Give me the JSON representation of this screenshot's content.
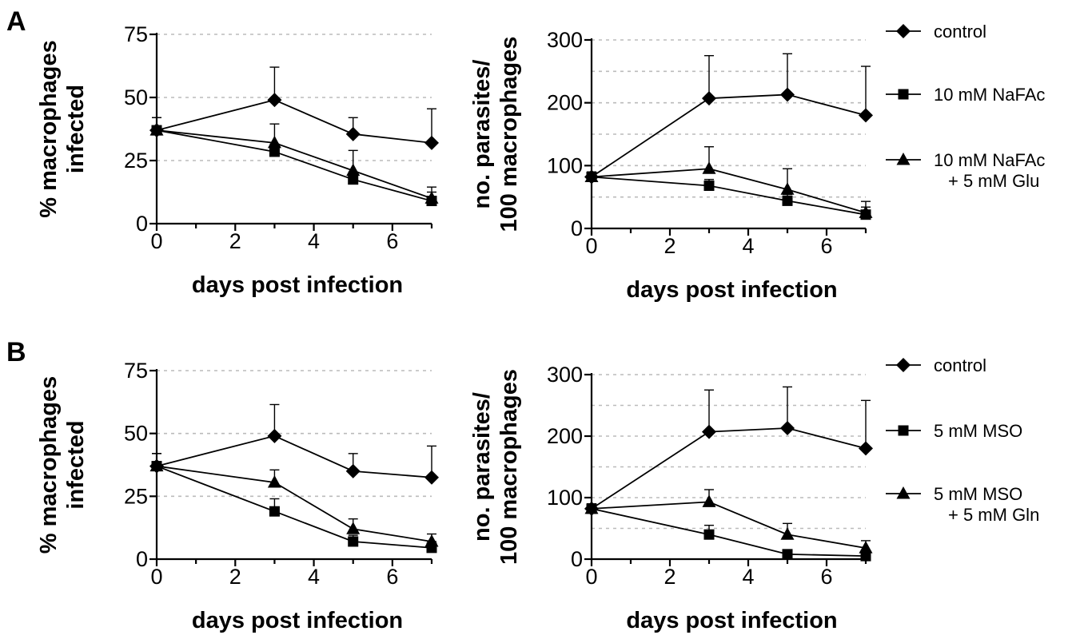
{
  "panels": [
    {
      "letter": "A"
    },
    {
      "letter": "B"
    }
  ],
  "legends": [
    {
      "items": [
        {
          "label": "control",
          "marker": "diamond"
        },
        {
          "label": "10 mM NaFAc",
          "marker": "square"
        },
        {
          "label": "10 mM NaFAc",
          "label2": "+ 5 mM Glu",
          "marker": "triangle"
        }
      ]
    },
    {
      "items": [
        {
          "label": "control",
          "marker": "diamond"
        },
        {
          "label": "5 mM MSO",
          "marker": "square"
        },
        {
          "label": "5 mM MSO",
          "label2": "+ 5 mM Gln",
          "marker": "triangle"
        }
      ]
    }
  ],
  "chart_data": [
    {
      "type": "line",
      "panel": "A",
      "ylabel": [
        "% macrophages",
        "infected"
      ],
      "xlabel": "days post infection",
      "xlim": [
        0,
        7
      ],
      "ylim": [
        0,
        75
      ],
      "xticks": [
        0,
        2,
        4,
        6
      ],
      "yticks": [
        0,
        25,
        50,
        75
      ],
      "grid": [
        25,
        50,
        75
      ],
      "x": [
        0,
        3,
        5,
        7
      ],
      "series": [
        {
          "marker": "diamond",
          "values": [
            37,
            49,
            35.5,
            32
          ],
          "err": [
            5,
            13,
            6.5,
            13.5
          ]
        },
        {
          "marker": "square",
          "values": [
            37,
            28.5,
            17.5,
            9
          ],
          "err": [
            5,
            3,
            3,
            3.5
          ]
        },
        {
          "marker": "triangle",
          "values": [
            37,
            32,
            21,
            10
          ],
          "err": [
            5,
            7.5,
            8,
            4.5
          ]
        }
      ]
    },
    {
      "type": "line",
      "panel": "A",
      "ylabel": [
        "no. parasites/",
        "100 macrophages"
      ],
      "xlabel": "days post infection",
      "xlim": [
        0,
        7
      ],
      "ylim": [
        0,
        300
      ],
      "xticks": [
        0,
        2,
        4,
        6
      ],
      "yticks": [
        0,
        100,
        200,
        300
      ],
      "grid": [
        50,
        100,
        150,
        200,
        250,
        300
      ],
      "x": [
        0,
        3,
        5,
        7
      ],
      "series": [
        {
          "marker": "diamond",
          "values": [
            82,
            207,
            213,
            180
          ],
          "err": [
            8,
            68,
            65,
            78
          ]
        },
        {
          "marker": "square",
          "values": [
            82,
            68,
            44,
            22
          ],
          "err": [
            8,
            10,
            10,
            12
          ]
        },
        {
          "marker": "triangle",
          "values": [
            82,
            95,
            62,
            25
          ],
          "err": [
            8,
            35,
            33,
            18
          ]
        }
      ]
    },
    {
      "type": "line",
      "panel": "B",
      "ylabel": [
        "% macrophages",
        "infected"
      ],
      "xlabel": "days post infection",
      "xlim": [
        0,
        7
      ],
      "ylim": [
        0,
        75
      ],
      "xticks": [
        0,
        2,
        4,
        6
      ],
      "yticks": [
        0,
        25,
        50,
        75
      ],
      "grid": [
        25,
        50,
        75
      ],
      "x": [
        0,
        3,
        5,
        7
      ],
      "series": [
        {
          "marker": "diamond",
          "values": [
            37,
            49,
            35,
            32.5
          ],
          "err": [
            5,
            12.5,
            7,
            12.5
          ]
        },
        {
          "marker": "square",
          "values": [
            37,
            19,
            7,
            4.5
          ],
          "err": [
            5,
            5,
            2.5,
            2.5
          ]
        },
        {
          "marker": "triangle",
          "values": [
            37,
            30.5,
            12,
            7
          ],
          "err": [
            5,
            5,
            4,
            3
          ]
        }
      ]
    },
    {
      "type": "line",
      "panel": "B",
      "ylabel": [
        "no. parasites/",
        "100 macrophages"
      ],
      "xlabel": "days post infection",
      "xlim": [
        0,
        7
      ],
      "ylim": [
        0,
        300
      ],
      "xticks": [
        0,
        2,
        4,
        6
      ],
      "yticks": [
        0,
        100,
        200,
        300
      ],
      "grid": [
        50,
        100,
        150,
        200,
        250,
        300
      ],
      "x": [
        0,
        3,
        5,
        7
      ],
      "series": [
        {
          "marker": "diamond",
          "values": [
            82,
            207,
            213,
            180
          ],
          "err": [
            8,
            68,
            67,
            78
          ]
        },
        {
          "marker": "square",
          "values": [
            82,
            40,
            8,
            5
          ],
          "err": [
            8,
            15,
            5,
            5
          ]
        },
        {
          "marker": "triangle",
          "values": [
            82,
            93,
            40,
            18
          ],
          "err": [
            8,
            20,
            18,
            12
          ]
        }
      ]
    }
  ]
}
